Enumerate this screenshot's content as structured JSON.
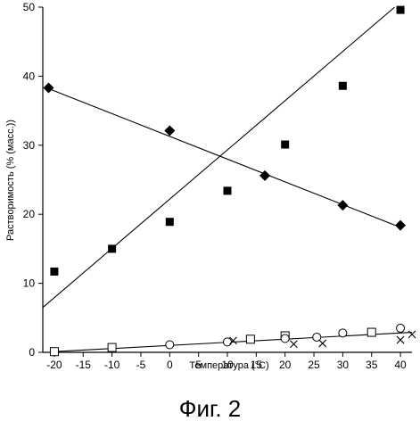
{
  "chart_data": {
    "type": "scatter",
    "xlabel": "Температура (°C)",
    "ylabel": "Растворимость (% (масс.))",
    "xlim": [
      -22,
      42
    ],
    "ylim": [
      0,
      50
    ],
    "x_ticks": [
      -20,
      -15,
      -10,
      -5,
      0,
      5,
      10,
      15,
      20,
      25,
      30,
      35,
      40
    ],
    "y_ticks": [
      0,
      10,
      20,
      30,
      40,
      50
    ],
    "grid": false,
    "colors": {
      "marker": "#000000",
      "line": "#000000"
    },
    "series": [
      {
        "marker": "diamond-filled",
        "points": [
          [
            -21,
            38.3
          ],
          [
            0,
            32.1
          ],
          [
            16.5,
            25.6
          ],
          [
            30,
            21.3
          ],
          [
            40,
            18.4
          ]
        ],
        "trendline": [
          [
            -21,
            38.2
          ],
          [
            40,
            18.1
          ]
        ]
      },
      {
        "marker": "square-filled",
        "points": [
          [
            -20,
            11.7
          ],
          [
            -10,
            15.0
          ],
          [
            0,
            18.9
          ],
          [
            10,
            23.4
          ],
          [
            20,
            30.1
          ],
          [
            30,
            38.6
          ],
          [
            40,
            49.6
          ]
        ],
        "trendline": [
          [
            -22,
            6.5
          ],
          [
            39,
            50
          ]
        ]
      },
      {
        "marker": "square-open",
        "points": [
          [
            -20,
            0.1
          ],
          [
            -10,
            0.7
          ],
          [
            14,
            1.9
          ],
          [
            20,
            2.4
          ],
          [
            35,
            2.9
          ]
        ]
      },
      {
        "marker": "circle-open",
        "points": [
          [
            0,
            1.1
          ],
          [
            10,
            1.5
          ],
          [
            20,
            2.0
          ],
          [
            25.5,
            2.2
          ],
          [
            30,
            2.8
          ],
          [
            40,
            3.5
          ]
        ]
      },
      {
        "marker": "cross",
        "points": [
          [
            11,
            1.7
          ],
          [
            21.5,
            1.2
          ],
          [
            26.5,
            1.3
          ],
          [
            40,
            1.8
          ],
          [
            42,
            2.6
          ]
        ]
      }
    ],
    "shared_trendline": [
      [
        -20,
        0.1
      ],
      [
        42,
        2.9
      ]
    ]
  },
  "caption": "Фиг. 2"
}
